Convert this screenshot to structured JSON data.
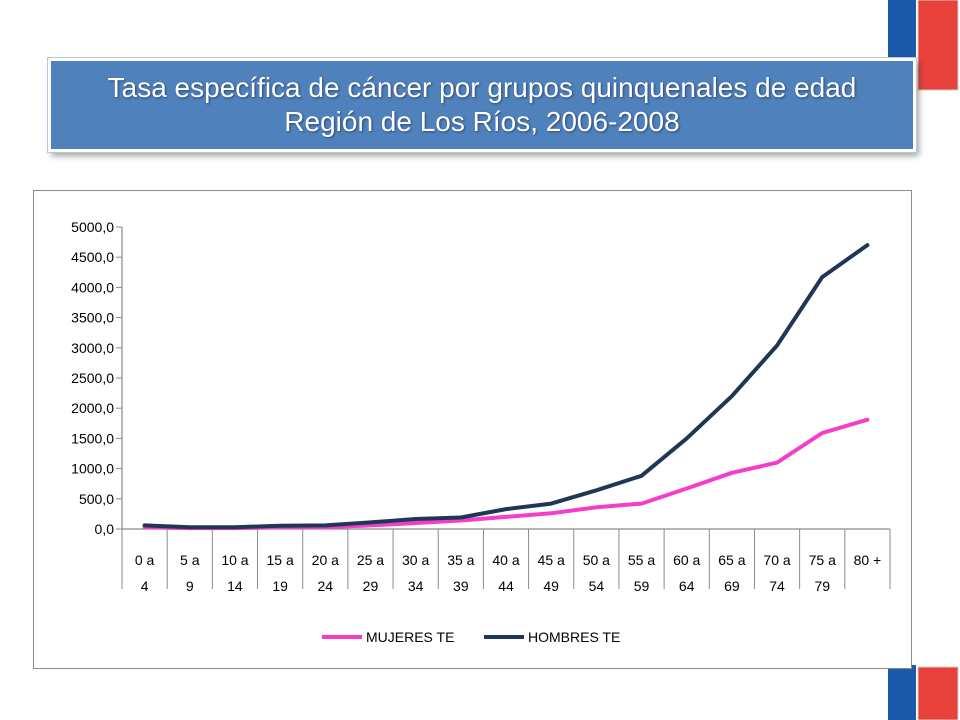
{
  "title": {
    "line1": "Tasa específica de  cáncer por  grupos quinquenales de edad",
    "line2": "Región de Los Ríos, 2006-2008"
  },
  "colors": {
    "title_bg": "#4f81bd",
    "flag_blue": "#1a5aa8",
    "flag_red": "#e8413c",
    "series_mujeres": "#f43ec9",
    "series_hombres": "#1f3756"
  },
  "chart_data": {
    "type": "line",
    "title": "",
    "xlabel": "",
    "ylabel": "",
    "ylim": [
      0,
      5000
    ],
    "y_ticks": [
      0,
      500,
      1000,
      1500,
      2000,
      2500,
      3000,
      3500,
      4000,
      4500,
      5000
    ],
    "y_tick_labels": [
      "0,0",
      "500,0",
      "1000,0",
      "1500,0",
      "2000,0",
      "2500,0",
      "3000,0",
      "3500,0",
      "4000,0",
      "4500,0",
      "5000,0"
    ],
    "categories": [
      [
        "0  a",
        "4"
      ],
      [
        "5  a",
        "9"
      ],
      [
        "10 a",
        "14"
      ],
      [
        "15 a",
        "19"
      ],
      [
        "20 a",
        "24"
      ],
      [
        "25 a",
        "29"
      ],
      [
        "30 a",
        "34"
      ],
      [
        "35 a",
        "39"
      ],
      [
        "40 a",
        "44"
      ],
      [
        "45 a",
        "49"
      ],
      [
        "50 a",
        "54"
      ],
      [
        "55 a",
        "59"
      ],
      [
        "60 a",
        "64"
      ],
      [
        "65 a",
        "69"
      ],
      [
        "70 a",
        "74"
      ],
      [
        "75 a",
        "79"
      ],
      [
        "80 +",
        ""
      ]
    ],
    "grid": false,
    "legend_position": "bottom",
    "series": [
      {
        "name": "MUJERES TE",
        "color": "#f43ec9",
        "values": [
          30,
          15,
          15,
          30,
          30,
          60,
          100,
          140,
          200,
          260,
          360,
          420,
          670,
          930,
          1100,
          1590,
          1810
        ]
      },
      {
        "name": "HOMBRES TE",
        "color": "#1f3756",
        "values": [
          60,
          30,
          30,
          55,
          60,
          110,
          165,
          190,
          330,
          420,
          640,
          880,
          1500,
          2200,
          3040,
          4170,
          4700
        ]
      }
    ]
  }
}
